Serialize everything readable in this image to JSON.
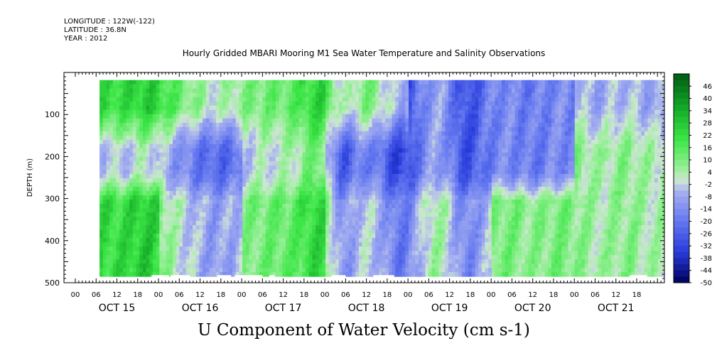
{
  "header": {
    "longitude": "LONGITUDE : 122W(-122)",
    "latitude": "LATITUDE : 36.8N",
    "year": "YEAR : 2012"
  },
  "chart_data": {
    "type": "heatmap",
    "title": "Hourly Gridded MBARI Mooring M1 Sea Water Temperature and Salinity Observations",
    "bottom_title": "U Component of Water Velocity (cm s-1)",
    "ylabel": "DEPTH (m)",
    "ylim": [
      500,
      0
    ],
    "yticks": [
      100,
      200,
      300,
      400,
      500
    ],
    "x_hour_ticks": [
      "00",
      "06",
      "12",
      "18",
      "00",
      "06",
      "12",
      "18",
      "00",
      "06",
      "12",
      "18",
      "00",
      "06",
      "12",
      "18",
      "00",
      "06",
      "12",
      "18",
      "00",
      "06",
      "12",
      "18",
      "00",
      "06",
      "12",
      "18"
    ],
    "x_day_labels": [
      "OCT 15",
      "OCT 16",
      "OCT 17",
      "OCT 18",
      "OCT 19",
      "OCT 20",
      "OCT 21"
    ],
    "colorbar": {
      "labels": [
        "46",
        "40",
        "34",
        "28",
        "22",
        "16",
        "10",
        "4",
        "-2",
        "-8",
        "-14",
        "-20",
        "-26",
        "-32",
        "-38",
        "-44",
        "-50"
      ],
      "range": [
        -50,
        52
      ]
    },
    "field_profile": [
      {
        "day": "OCT 15",
        "upper": "positive",
        "mid": "negative",
        "lower": "positive"
      },
      {
        "day": "OCT 16",
        "upper": "positive",
        "mid": "negative",
        "lower": "mixed"
      },
      {
        "day": "OCT 17",
        "upper": "positive",
        "mid": "mixed",
        "lower": "positive"
      },
      {
        "day": "OCT 18",
        "upper": "positive",
        "mid": "negative",
        "lower": "mixed"
      },
      {
        "day": "OCT 19",
        "upper": "negative",
        "mid": "negative",
        "lower": "mixed"
      },
      {
        "day": "OCT 20",
        "upper": "negative",
        "mid": "negative",
        "lower": "positive"
      },
      {
        "day": "OCT 21",
        "upper": "mixed",
        "mid": "positive",
        "lower": "positive"
      }
    ]
  }
}
